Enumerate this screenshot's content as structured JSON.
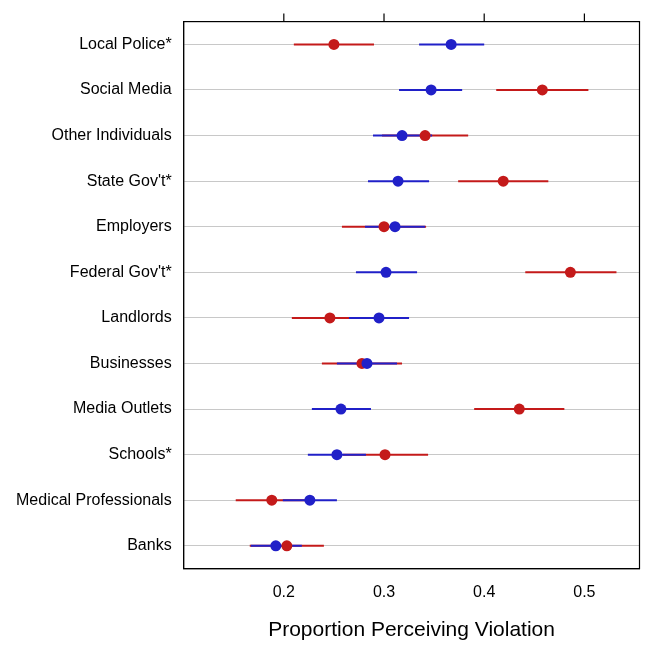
{
  "chart_data": {
    "type": "scatter",
    "orientation": "horizontal",
    "marker": "circle",
    "grid": true,
    "categories": [
      "Local Police*",
      "Social Media",
      "Other Individuals",
      "State Gov't*",
      "Employers",
      "Federal Gov't*",
      "Landlords",
      "Businesses",
      "Media Outlets",
      "Schools*",
      "Medical Professionals",
      "Banks"
    ],
    "series": [
      {
        "color": "#2020c8",
        "values": [
          0.367,
          0.347,
          0.318,
          0.314,
          0.311,
          0.302,
          0.295,
          0.283,
          0.257,
          0.253,
          0.226,
          0.192
        ],
        "lower": [
          0.335,
          0.315,
          0.289,
          0.284,
          0.281,
          0.272,
          0.265,
          0.253,
          0.228,
          0.224,
          0.199,
          0.167
        ],
        "upper": [
          0.4,
          0.378,
          0.348,
          0.345,
          0.341,
          0.333,
          0.325,
          0.313,
          0.287,
          0.282,
          0.253,
          0.218
        ]
      },
      {
        "color": "#c41a1a",
        "values": [
          0.25,
          0.458,
          0.341,
          0.419,
          0.3,
          0.486,
          0.246,
          0.278,
          0.435,
          0.301,
          0.188,
          0.203
        ],
        "lower": [
          0.21,
          0.412,
          0.298,
          0.374,
          0.258,
          0.441,
          0.208,
          0.238,
          0.39,
          0.259,
          0.152,
          0.166
        ],
        "upper": [
          0.29,
          0.504,
          0.384,
          0.464,
          0.342,
          0.532,
          0.285,
          0.318,
          0.48,
          0.344,
          0.224,
          0.24
        ]
      }
    ],
    "xlabel": "Proportion Perceiving Violation",
    "xlim": [
      0.1,
      0.555
    ],
    "xticks": [
      0.2,
      0.3,
      0.4,
      0.5
    ]
  }
}
